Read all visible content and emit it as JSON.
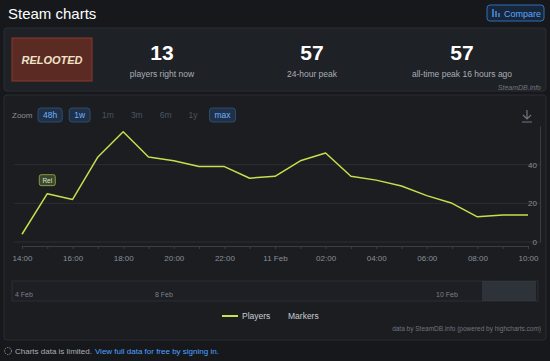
{
  "page": {
    "title": "Steam charts",
    "compare": "Compare",
    "thumbnail_text": "RELOOTED",
    "stats": [
      {
        "value": 13,
        "label": "players right now"
      },
      {
        "value": 57,
        "label": "24-hour peak"
      },
      {
        "value": 57,
        "label": "all-time peak 16 hours ago"
      }
    ],
    "source": "SteamDB.info",
    "zoom_label": "Zoom",
    "zoom_options": [
      {
        "label": "48h",
        "enabled": true
      },
      {
        "label": "1w",
        "enabled": true
      },
      {
        "label": "1m",
        "enabled": false
      },
      {
        "label": "3m",
        "enabled": false
      },
      {
        "label": "6m",
        "enabled": false
      },
      {
        "label": "1y",
        "enabled": false
      },
      {
        "label": "max",
        "enabled": true
      }
    ],
    "navigator_labels": [
      "4 Feb",
      "8 Feb",
      "10 Feb"
    ],
    "credit": "data by SteamDB.info (powered by highcharts.com)",
    "footer_note": "Charts data is limited.",
    "footer_link": "View full data for free by signing in."
  },
  "chart_data": {
    "type": "line",
    "categories": [
      "14:00",
      null,
      "16:00",
      null,
      "18:00",
      null,
      "20:00",
      null,
      "22:00",
      null,
      "11 Feb",
      null,
      "02:00",
      null,
      "04:00",
      null,
      "06:00",
      null,
      "08:00",
      null,
      "10:00"
    ],
    "series": [
      {
        "name": "Players",
        "color": "#c5e04b",
        "values": [
          4,
          25,
          22,
          44,
          57,
          44,
          42,
          39,
          39,
          33,
          34,
          42,
          46,
          34,
          32,
          29,
          24,
          20,
          13,
          14,
          14
        ]
      }
    ],
    "ylim": [
      0,
      60
    ],
    "yticks": [
      0,
      20,
      40
    ],
    "grid": true,
    "annotations": {
      "name": "Markers",
      "items": [
        {
          "text": "Rel",
          "index": 1
        }
      ]
    }
  }
}
